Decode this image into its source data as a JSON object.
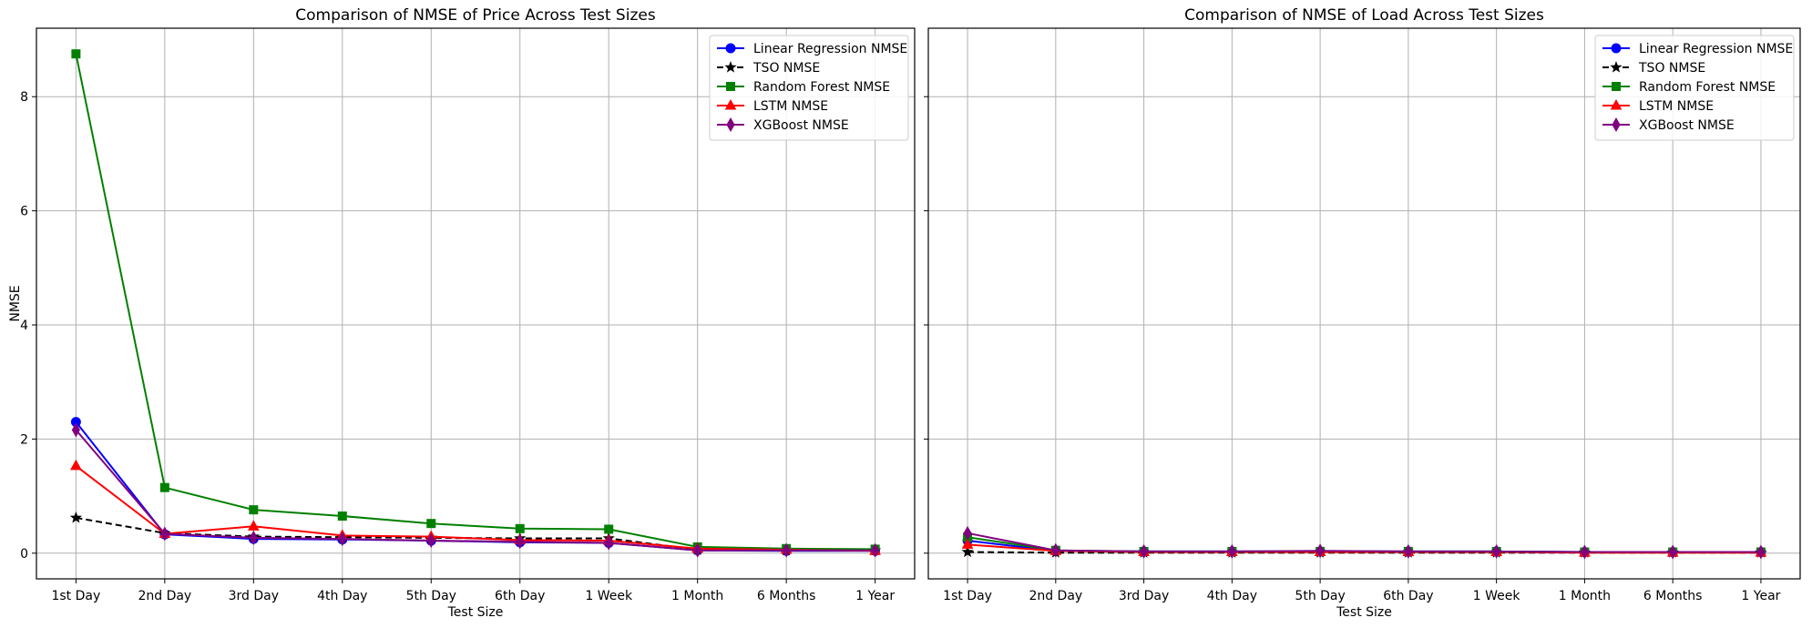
{
  "chart_data": [
    {
      "type": "line",
      "title": "Comparison of NMSE of Price Across Test Sizes",
      "xlabel": "Test Size",
      "ylabel": "NMSE",
      "categories": [
        "1st Day",
        "2nd Day",
        "3rd Day",
        "4th Day",
        "5th Day",
        "6th Day",
        "1 Week",
        "1 Month",
        "6 Months",
        "1 Year"
      ],
      "ylim": [
        -0.45,
        9.2
      ],
      "yticks": [
        0,
        2,
        4,
        6,
        8
      ],
      "grid": true,
      "legend": "top-right",
      "series": [
        {
          "name": "Linear Regression NMSE",
          "color": "#0000ff",
          "marker": "circle",
          "dash": false,
          "values": [
            2.3,
            0.33,
            0.25,
            0.24,
            0.22,
            0.19,
            0.18,
            0.05,
            0.04,
            0.04
          ]
        },
        {
          "name": "TSO NMSE",
          "color": "#000000",
          "marker": "star",
          "dash": true,
          "values": [
            0.62,
            0.35,
            0.29,
            0.28,
            0.27,
            0.26,
            0.26,
            0.06,
            0.05,
            0.05
          ]
        },
        {
          "name": "Random Forest NMSE",
          "color": "#008000",
          "marker": "square",
          "dash": false,
          "values": [
            8.75,
            1.15,
            0.76,
            0.65,
            0.52,
            0.43,
            0.42,
            0.11,
            0.08,
            0.07
          ]
        },
        {
          "name": "LSTM NMSE",
          "color": "#ff0000",
          "marker": "triangle",
          "dash": false,
          "values": [
            1.53,
            0.34,
            0.47,
            0.31,
            0.29,
            0.23,
            0.22,
            0.08,
            0.06,
            0.04
          ]
        },
        {
          "name": "XGBoost NMSE",
          "color": "#800080",
          "marker": "diamond",
          "dash": false,
          "values": [
            2.16,
            0.34,
            0.27,
            0.25,
            0.22,
            0.2,
            0.18,
            0.05,
            0.05,
            0.05
          ]
        }
      ]
    },
    {
      "type": "line",
      "title": "Comparison of NMSE of Load Across Test Sizes",
      "xlabel": "Test Size",
      "ylabel": "",
      "categories": [
        "1st Day",
        "2nd Day",
        "3rd Day",
        "4th Day",
        "5th Day",
        "6th Day",
        "1 Week",
        "1 Month",
        "6 Months",
        "1 Year"
      ],
      "ylim": [
        -0.45,
        9.2
      ],
      "yticks": [
        0,
        2,
        4,
        6,
        8
      ],
      "shared_y": true,
      "grid": true,
      "legend": "top-right",
      "series": [
        {
          "name": "Linear Regression NMSE",
          "color": "#0000ff",
          "marker": "circle",
          "dash": false,
          "values": [
            0.22,
            0.04,
            0.03,
            0.03,
            0.03,
            0.03,
            0.03,
            0.02,
            0.02,
            0.02
          ]
        },
        {
          "name": "TSO NMSE",
          "color": "#000000",
          "marker": "star",
          "dash": true,
          "values": [
            0.02,
            0.01,
            0.01,
            0.01,
            0.01,
            0.01,
            0.01,
            0.01,
            0.01,
            0.01
          ]
        },
        {
          "name": "Random Forest NMSE",
          "color": "#008000",
          "marker": "square",
          "dash": false,
          "values": [
            0.28,
            0.05,
            0.03,
            0.03,
            0.03,
            0.03,
            0.03,
            0.02,
            0.02,
            0.02
          ]
        },
        {
          "name": "LSTM NMSE",
          "color": "#ff0000",
          "marker": "triangle",
          "dash": false,
          "values": [
            0.15,
            0.04,
            0.02,
            0.02,
            0.02,
            0.02,
            0.02,
            0.01,
            0.01,
            0.01
          ]
        },
        {
          "name": "XGBoost NMSE",
          "color": "#800080",
          "marker": "diamond",
          "dash": false,
          "values": [
            0.35,
            0.05,
            0.03,
            0.03,
            0.04,
            0.03,
            0.03,
            0.02,
            0.02,
            0.02
          ]
        }
      ]
    }
  ]
}
